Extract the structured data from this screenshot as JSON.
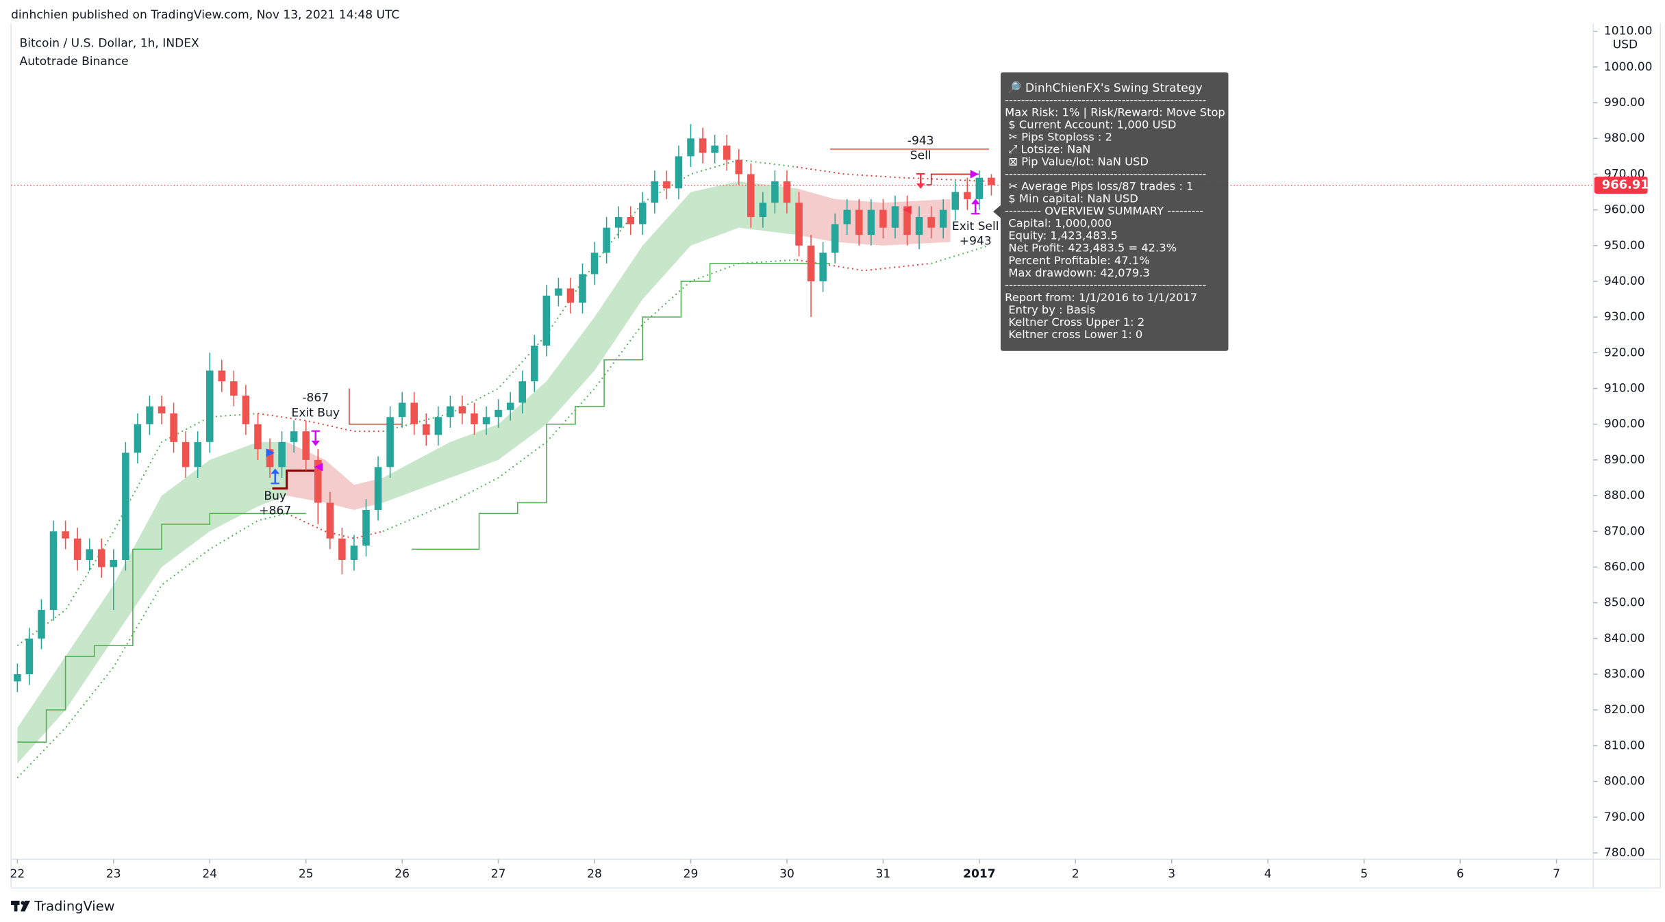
{
  "chart_data": {
    "type": "candlestick",
    "publisher": "dinhchien published on TradingView.com, Nov 13, 2021 14:48 UTC",
    "title": "Bitcoin / U.S. Dollar, 1h, INDEX",
    "subtitle": "Autotrade Binance",
    "y_unit": "USD",
    "brand": "TradingView",
    "xlim": [
      -0.066,
      16.383
    ],
    "ylim": [
      778.2,
      1012.2
    ],
    "xticks": [
      {
        "value": 0,
        "label": "22"
      },
      {
        "value": 1,
        "label": "23"
      },
      {
        "value": 2,
        "label": "24"
      },
      {
        "value": 3,
        "label": "25"
      },
      {
        "value": 4,
        "label": "26"
      },
      {
        "value": 5,
        "label": "27"
      },
      {
        "value": 6,
        "label": "28"
      },
      {
        "value": 7,
        "label": "29"
      },
      {
        "value": 8,
        "label": "30"
      },
      {
        "value": 9,
        "label": "31"
      },
      {
        "value": 10,
        "label": "2017"
      },
      {
        "value": 11,
        "label": "2"
      },
      {
        "value": 12,
        "label": "3"
      },
      {
        "value": 13,
        "label": "4"
      },
      {
        "value": 14,
        "label": "5"
      },
      {
        "value": 15,
        "label": "6"
      },
      {
        "value": 16,
        "label": "7"
      }
    ],
    "yticks": [
      {
        "value": 780,
        "label": "780.00"
      },
      {
        "value": 790,
        "label": "790.00"
      },
      {
        "value": 800,
        "label": "800.00"
      },
      {
        "value": 810,
        "label": "810.00"
      },
      {
        "value": 820,
        "label": "820.00"
      },
      {
        "value": 830,
        "label": "830.00"
      },
      {
        "value": 840,
        "label": "840.00"
      },
      {
        "value": 850,
        "label": "850.00"
      },
      {
        "value": 860,
        "label": "860.00"
      },
      {
        "value": 870,
        "label": "870.00"
      },
      {
        "value": 880,
        "label": "880.00"
      },
      {
        "value": 890,
        "label": "890.00"
      },
      {
        "value": 900,
        "label": "900.00"
      },
      {
        "value": 910,
        "label": "910.00"
      },
      {
        "value": 920,
        "label": "920.00"
      },
      {
        "value": 930,
        "label": "930.00"
      },
      {
        "value": 940,
        "label": "940.00"
      },
      {
        "value": 950,
        "label": "950.00"
      },
      {
        "value": 960,
        "label": "960.00"
      },
      {
        "value": 970,
        "label": "970.00"
      },
      {
        "value": 980,
        "label": "980.00"
      },
      {
        "value": 990,
        "label": "990.00"
      },
      {
        "value": 1000,
        "label": "1000.00"
      },
      {
        "value": 1010,
        "label": "1010.00"
      }
    ],
    "grid": false,
    "up_color": "#26a69a",
    "down_color": "#ef5350",
    "last_price": 966.91,
    "last_price_color": "#f23645",
    "candles": {
      "x": [
        0,
        0.125,
        0.25,
        0.375,
        0.5,
        0.625,
        0.75,
        0.875,
        1,
        1.125,
        1.25,
        1.375,
        1.5,
        1.625,
        1.75,
        1.875,
        2,
        2.125,
        2.25,
        2.375,
        2.5,
        2.625,
        2.75,
        2.875,
        3,
        3.125,
        3.25,
        3.375,
        3.5,
        3.625,
        3.75,
        3.875,
        4,
        4.125,
        4.25,
        4.375,
        4.5,
        4.625,
        4.75,
        4.875,
        5,
        5.125,
        5.25,
        5.375,
        5.5,
        5.625,
        5.75,
        5.875,
        6,
        6.125,
        6.25,
        6.375,
        6.5,
        6.625,
        6.75,
        6.875,
        7,
        7.125,
        7.25,
        7.375,
        7.5,
        7.625,
        7.75,
        7.875,
        8,
        8.125,
        8.25,
        8.375,
        8.5,
        8.625,
        8.75,
        8.875,
        9,
        9.125,
        9.25,
        9.375,
        9.5,
        9.625,
        9.75,
        9.875,
        10,
        10.125
      ],
      "open": [
        828,
        830,
        840,
        848,
        870,
        868,
        862,
        865,
        860,
        862,
        892,
        900,
        905,
        903,
        895,
        888,
        895,
        915,
        912,
        908,
        900,
        893,
        888,
        895,
        898,
        890,
        878,
        868,
        862,
        866,
        876,
        888,
        902,
        906,
        900,
        897,
        902,
        905,
        903,
        900,
        902,
        904,
        906,
        912,
        922,
        936,
        938,
        934,
        942,
        948,
        955,
        958,
        956,
        962,
        968,
        966,
        975,
        980,
        976,
        978,
        974,
        970,
        958,
        962,
        968,
        962,
        950,
        940,
        948,
        956,
        960,
        953,
        960,
        955,
        961,
        953,
        958,
        955,
        960,
        965,
        963,
        969
      ],
      "high": [
        833,
        843,
        851,
        873,
        873,
        871,
        868,
        868,
        865,
        895,
        903,
        908,
        908,
        906,
        898,
        898,
        920,
        918,
        915,
        911,
        903,
        896,
        898,
        901,
        901,
        893,
        881,
        871,
        869,
        879,
        891,
        905,
        909,
        909,
        903,
        905,
        908,
        908,
        906,
        905,
        907,
        909,
        915,
        925,
        939,
        941,
        941,
        945,
        951,
        958,
        961,
        961,
        965,
        971,
        971,
        978,
        984,
        983,
        981,
        981,
        977,
        973,
        965,
        971,
        971,
        965,
        953,
        951,
        959,
        963,
        963,
        963,
        963,
        964,
        964,
        961,
        961,
        963,
        968,
        969,
        971,
        970
      ],
      "low": [
        825,
        827,
        837,
        845,
        865,
        859,
        859,
        857,
        848,
        859,
        889,
        897,
        900,
        892,
        885,
        885,
        892,
        909,
        905,
        897,
        890,
        885,
        885,
        892,
        887,
        872,
        865,
        858,
        859,
        863,
        873,
        885,
        899,
        897,
        894,
        894,
        899,
        900,
        897,
        897,
        899,
        901,
        903,
        909,
        919,
        933,
        931,
        931,
        939,
        945,
        952,
        953,
        953,
        959,
        963,
        963,
        972,
        973,
        973,
        971,
        967,
        955,
        955,
        959,
        959,
        947,
        930,
        937,
        945,
        953,
        950,
        950,
        952,
        952,
        950,
        949,
        952,
        952,
        957,
        960,
        960,
        964
      ],
      "close": [
        830,
        840,
        848,
        870,
        868,
        862,
        865,
        860,
        862,
        892,
        900,
        905,
        903,
        895,
        888,
        895,
        915,
        912,
        908,
        900,
        893,
        888,
        895,
        898,
        890,
        878,
        868,
        862,
        866,
        876,
        888,
        902,
        906,
        900,
        897,
        902,
        905,
        903,
        900,
        902,
        904,
        906,
        912,
        922,
        936,
        938,
        934,
        942,
        948,
        955,
        958,
        956,
        962,
        968,
        966,
        975,
        980,
        976,
        978,
        974,
        970,
        958,
        962,
        968,
        962,
        950,
        940,
        948,
        956,
        960,
        953,
        960,
        955,
        961,
        953,
        958,
        955,
        960,
        965,
        963,
        969,
        966.91
      ]
    },
    "bands": [
      {
        "color": "#c8e6c9",
        "x": [
          0,
          0.5,
          1,
          1.5,
          2,
          2.5,
          2.8
        ],
        "upper": [
          815,
          835,
          855,
          880,
          890,
          895,
          895
        ],
        "lower": [
          805,
          820,
          840,
          860,
          870,
          877,
          880
        ]
      },
      {
        "color": "#f4cccc",
        "x": [
          2.8,
          3.2,
          3.5,
          3.8
        ],
        "upper": [
          895,
          890,
          883,
          885
        ],
        "lower": [
          880,
          878,
          876,
          878
        ]
      },
      {
        "color": "#c8e6c9",
        "x": [
          3.8,
          4.5,
          5,
          5.5,
          6,
          6.5,
          7,
          7.5,
          8.1
        ],
        "upper": [
          885,
          895,
          900,
          912,
          930,
          950,
          965,
          968,
          966
        ],
        "lower": [
          878,
          885,
          890,
          900,
          915,
          935,
          950,
          955,
          953
        ]
      },
      {
        "color": "#f4cccc",
        "x": [
          8.1,
          8.5,
          9,
          9.7
        ],
        "upper": [
          966,
          963,
          962,
          963
        ],
        "lower": [
          953,
          951,
          950,
          951
        ]
      }
    ],
    "lines": [
      {
        "color": "#4caf50",
        "style": "dotted",
        "x": [
          0,
          0.5,
          1,
          1.5,
          2,
          2.5
        ],
        "values": [
          838,
          848,
          870,
          895,
          902,
          903
        ]
      },
      {
        "color": "#e53935",
        "style": "dotted",
        "x": [
          2.5,
          3,
          3.5,
          3.8
        ],
        "values": [
          903,
          901,
          898,
          898
        ]
      },
      {
        "color": "#4caf50",
        "style": "dotted",
        "x": [
          3.8,
          4.5,
          5,
          5.5,
          6,
          6.5,
          7,
          7.5,
          8.1
        ],
        "values": [
          898,
          903,
          910,
          925,
          945,
          962,
          970,
          974,
          972
        ]
      },
      {
        "color": "#e53935",
        "style": "dotted",
        "x": [
          8.1,
          8.6,
          9.2,
          10.1
        ],
        "values": [
          972,
          970,
          969,
          968
        ]
      },
      {
        "color": "#4caf50",
        "style": "dotted",
        "x": [
          0,
          0.5,
          1,
          1.5,
          2,
          2.5,
          2.8
        ],
        "values": [
          801,
          815,
          832,
          855,
          865,
          873,
          875
        ]
      },
      {
        "color": "#e53935",
        "style": "dotted",
        "x": [
          2.8,
          3.2,
          3.5,
          3.8
        ],
        "values": [
          875,
          870,
          868,
          870
        ]
      },
      {
        "color": "#4caf50",
        "style": "dotted",
        "x": [
          3.8,
          4.5,
          5,
          5.5,
          6,
          6.5,
          7,
          7.5,
          8.1
        ],
        "values": [
          870,
          878,
          885,
          895,
          910,
          928,
          940,
          945,
          946
        ]
      },
      {
        "color": "#e53935",
        "style": "dotted",
        "x": [
          8.1,
          8.8,
          9.5
        ],
        "values": [
          946,
          943,
          945
        ]
      },
      {
        "color": "#4caf50",
        "style": "dotted",
        "x": [
          9.5,
          10.1
        ],
        "values": [
          945,
          950
        ]
      },
      {
        "color": "#4caf50",
        "style": "step",
        "x": [
          0,
          0.3,
          0.5,
          0.8,
          1.2,
          1.5,
          2,
          2.5,
          3
        ],
        "values": [
          811,
          820,
          835,
          838,
          865,
          872,
          875,
          875,
          875
        ]
      },
      {
        "color": "#4caf50",
        "style": "step",
        "x": [
          4.1,
          4.6,
          4.8,
          5.2,
          5.5,
          5.8,
          6.1,
          6.5,
          6.9,
          7.2,
          7.6,
          8.45
        ],
        "values": [
          865,
          865,
          875,
          878,
          900,
          905,
          918,
          930,
          940,
          945,
          945,
          945
        ]
      },
      {
        "color": "#e53935",
        "style": "solid",
        "x": [
          3.45,
          3.45,
          4
        ],
        "values": [
          910,
          900,
          900
        ]
      },
      {
        "color": "#8b0000",
        "style": "step",
        "x": [
          2.65,
          2.75,
          2.8,
          3.1
        ],
        "values": [
          882,
          882,
          887,
          887
        ]
      },
      {
        "color": "#e53935",
        "style": "solid",
        "x": [
          8.45,
          10.1
        ],
        "values": [
          977,
          977
        ]
      },
      {
        "color": "#b71c1c",
        "style": "step",
        "x": [
          9.45,
          9.5,
          10
        ],
        "values": [
          967,
          970,
          970
        ]
      }
    ],
    "markers": [
      {
        "x": 2.63,
        "y": 892,
        "shape": "right",
        "color": "#2962ff"
      },
      {
        "x": 3.13,
        "y": 888,
        "shape": "left",
        "color": "#d500f9"
      },
      {
        "x": 9.25,
        "y": 960,
        "shape": "left",
        "color": "#f23645"
      },
      {
        "x": 9.95,
        "y": 970,
        "shape": "right",
        "color": "#d500f9"
      }
    ],
    "signals": [
      {
        "x": 2.68,
        "y": 885.5,
        "direction": "up",
        "color": "#2962ff",
        "texts": [
          "Buy",
          "+867"
        ]
      },
      {
        "x": 3.1,
        "y": 896,
        "direction": "down",
        "color": "#d500f9",
        "texts": [
          "-867",
          "Exit Buy"
        ]
      },
      {
        "x": 9.39,
        "y": 968,
        "direction": "down",
        "color": "#f23645",
        "texts": [
          "-943",
          "Sell"
        ]
      },
      {
        "x": 9.96,
        "y": 961,
        "direction": "up",
        "color": "#d500f9",
        "texts": [
          "Exit Sell",
          "+943"
        ]
      }
    ],
    "info_box": {
      "title": "🔎 DinhChienFX's Swing Strategy",
      "lines": [
        "--------------------------------------------------",
        "Max Risk: 1% | Risk/Reward: Move Stop",
        " $ Current Account: 1,000 USD",
        " ✂ Pips Stoploss : 2",
        " ⤢ Lotsize: NaN",
        " ⊠ Pip Value/lot: NaN USD",
        "--------------------------------------------------",
        " ✂ Average Pips loss/87 trades : 1",
        " $ Min capital: NaN USD",
        "--------- OVERVIEW SUMMARY ---------",
        " Capital: 1,000,000",
        " Equity: 1,423,483.5",
        " Net Profit: 423,483.5 = 42.3%",
        " Percent Profitable: 47.1%",
        " Max drawdown: 42,079.3",
        "--------------------------------------------------",
        "Report from: 1/1/2016 to 1/1/2017",
        " Entry by : Basis",
        " Keltner Cross Upper 1: 2",
        " Keltner cross Lower 1: 0"
      ]
    }
  }
}
